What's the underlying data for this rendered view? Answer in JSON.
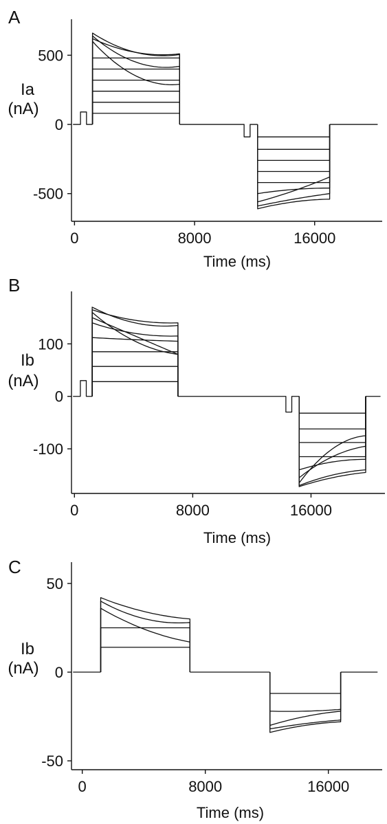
{
  "chart_data": [
    {
      "type": "line",
      "panel_label": "A",
      "ylabel_line1": "Ia",
      "ylabel_line2": "(nA)",
      "xlabel": "Time (ms)",
      "xticks": [
        0,
        8000,
        16000
      ],
      "yticks": [
        -500,
        0,
        500
      ],
      "xlim": [
        -200,
        20500
      ],
      "ylim": [
        -700,
        760
      ],
      "prepulse": {
        "start": 400,
        "end": 800,
        "amp": 90,
        "neg_start": 11300,
        "neg_end": 11700,
        "neg_amp": -90
      },
      "pos_step": {
        "start": 1200,
        "end": 7000
      },
      "neg_step": {
        "start": 12200,
        "end": 17000
      },
      "pos_traces": [
        [
          80,
          80,
          80
        ],
        [
          160,
          160,
          160
        ],
        [
          240,
          240,
          240
        ],
        [
          320,
          320,
          320
        ],
        [
          400,
          400,
          400
        ],
        [
          480,
          480,
          480
        ],
        [
          660,
          520,
          505
        ],
        [
          600,
          350,
          290
        ],
        [
          640,
          450,
          420
        ],
        [
          620,
          520,
          510
        ]
      ],
      "neg_traces": [
        [
          -90,
          -90,
          -90
        ],
        [
          -180,
          -180,
          -180
        ],
        [
          -260,
          -260,
          -260
        ],
        [
          -340,
          -340,
          -340
        ],
        [
          -420,
          -420,
          -420
        ],
        [
          -500,
          -470,
          -460
        ],
        [
          -560,
          -480,
          -380
        ],
        [
          -590,
          -540,
          -500
        ],
        [
          -610,
          -560,
          -540
        ]
      ]
    },
    {
      "type": "line",
      "panel_label": "B",
      "ylabel_line1": "Ib",
      "ylabel_line2": "(nA)",
      "xlabel": "Time (ms)",
      "xticks": [
        0,
        8000,
        16000
      ],
      "yticks": [
        -100,
        0,
        100
      ],
      "xlim": [
        -200,
        21000
      ],
      "ylim": [
        -185,
        200
      ],
      "prepulse": {
        "start": 400,
        "end": 800,
        "amp": 30,
        "neg_start": 14300,
        "neg_end": 14700,
        "neg_amp": -30
      },
      "pos_step": {
        "start": 1200,
        "end": 7000
      },
      "neg_step": {
        "start": 15200,
        "end": 19700
      },
      "pos_traces": [
        [
          28,
          28,
          28
        ],
        [
          57,
          57,
          57
        ],
        [
          85,
          85,
          85
        ],
        [
          112,
          108,
          105
        ],
        [
          140,
          120,
          115
        ],
        [
          150,
          115,
          80
        ],
        [
          160,
          105,
          80
        ],
        [
          170,
          140,
          135
        ],
        [
          165,
          145,
          140
        ]
      ],
      "neg_traces": [
        [
          -32,
          -32,
          -32
        ],
        [
          -62,
          -62,
          -62
        ],
        [
          -88,
          -88,
          -88
        ],
        [
          -115,
          -115,
          -115
        ],
        [
          -140,
          -125,
          -120
        ],
        [
          -155,
          -115,
          -95
        ],
        [
          -165,
          -100,
          -75
        ],
        [
          -170,
          -150,
          -140
        ],
        [
          -172,
          -155,
          -145
        ]
      ]
    },
    {
      "type": "line",
      "panel_label": "C",
      "ylabel_line1": "Ib",
      "ylabel_line2": "(nA)",
      "xlabel": "Time (ms)",
      "xticks": [
        0,
        8000,
        16000
      ],
      "yticks": [
        -50,
        0,
        50
      ],
      "xlim": [
        -700,
        19500
      ],
      "ylim": [
        -55,
        62
      ],
      "prepulse": null,
      "pos_step": {
        "start": 1200,
        "end": 7000
      },
      "neg_step": {
        "start": 12200,
        "end": 16800
      },
      "pos_traces": [
        [
          14,
          14,
          14
        ],
        [
          25,
          25,
          25
        ],
        [
          40,
          30,
          28
        ],
        [
          36,
          24,
          17
        ],
        [
          42,
          34,
          30
        ]
      ],
      "neg_traces": [
        [
          -12,
          -12,
          -12
        ],
        [
          -22,
          -22,
          -21
        ],
        [
          -30,
          -25,
          -22
        ],
        [
          -32,
          -29,
          -27
        ],
        [
          -34,
          -30,
          -28
        ]
      ]
    }
  ]
}
